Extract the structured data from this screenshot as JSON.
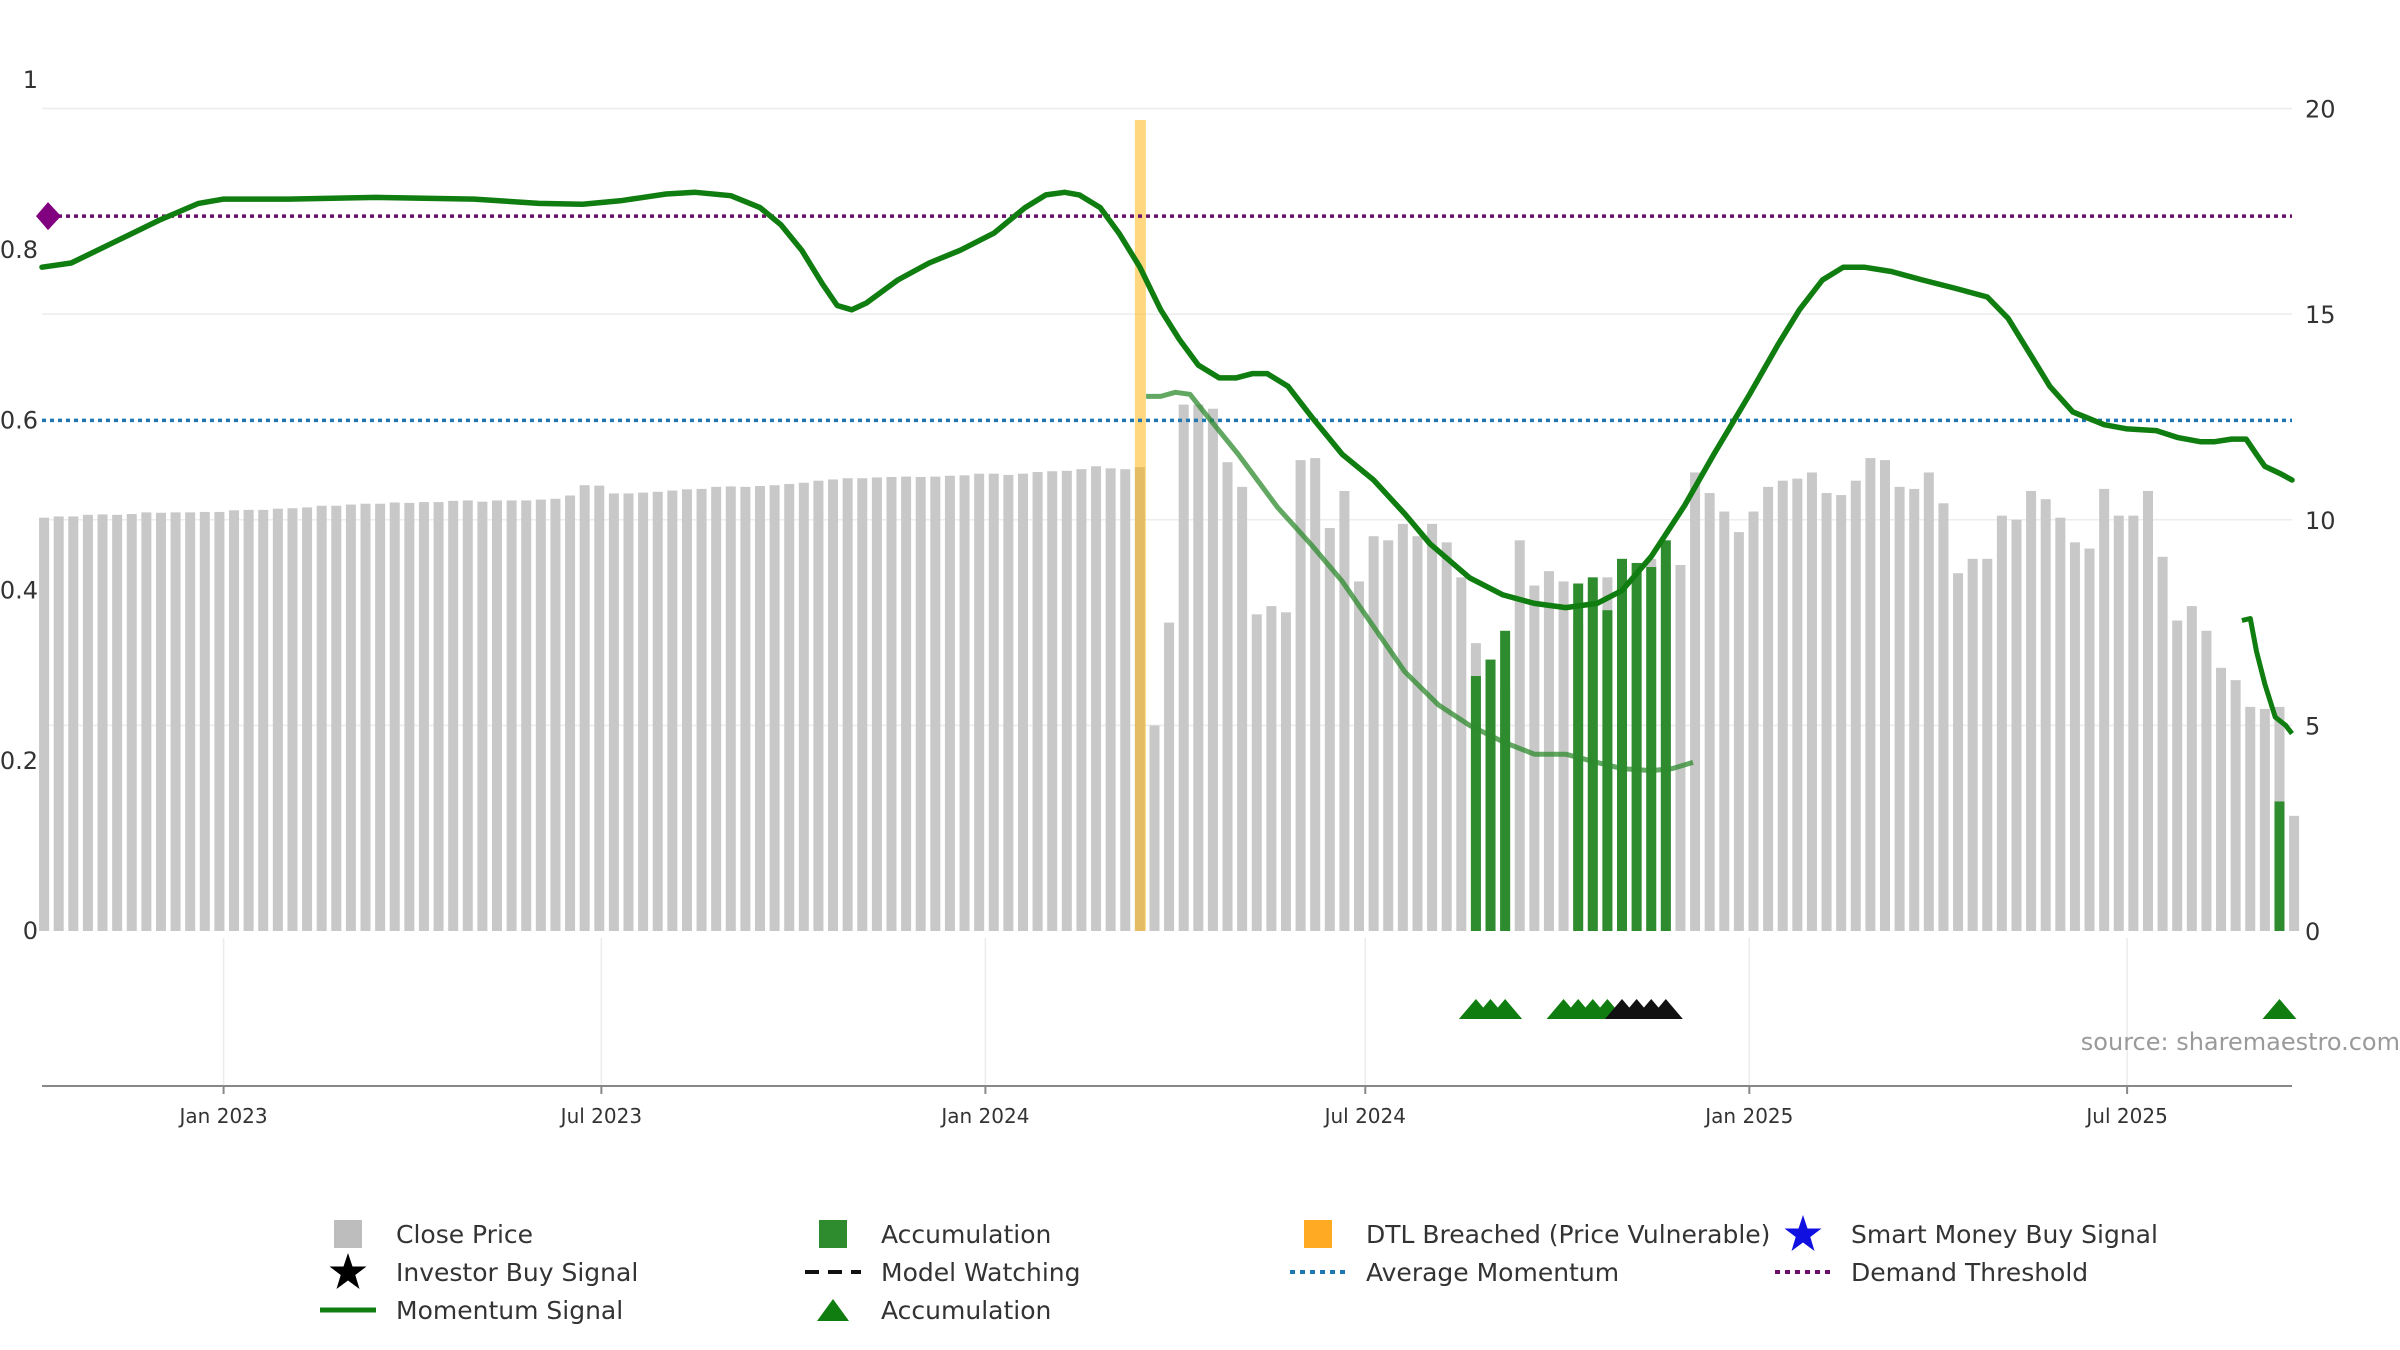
{
  "chart_data": {
    "type": "bar",
    "title": "",
    "source_note": "source: sharemaestro.com",
    "left_axis": {
      "range": [
        0,
        1
      ],
      "ticks": [
        0,
        0.2,
        0.4,
        0.6,
        0.8,
        1
      ],
      "tick_labels": [
        "0",
        "0.2",
        "0.4",
        "0.6",
        "0.8",
        "1"
      ]
    },
    "right_axis": {
      "range": [
        0,
        20
      ],
      "ticks": [
        0,
        5,
        10,
        15,
        20
      ],
      "tick_labels": [
        "0",
        "5",
        "10",
        "15",
        "20"
      ]
    },
    "x_axis": {
      "start": "2022-10-06",
      "end": "2025-09-18",
      "ticks": [
        {
          "date": "2023-01-01",
          "label": "Jan 2023"
        },
        {
          "date": "2023-07-01",
          "label": "Jul 2023"
        },
        {
          "date": "2024-01-01",
          "label": "Jan 2024"
        },
        {
          "date": "2024-07-01",
          "label": "Jul 2024"
        },
        {
          "date": "2025-01-01",
          "label": "Jan 2025"
        },
        {
          "date": "2025-07-01",
          "label": "Jul 2025"
        }
      ]
    },
    "close_price": {
      "start": "2022-10-07",
      "interval_days": 7,
      "values": [
        10.05,
        10.08,
        10.08,
        10.12,
        10.13,
        10.12,
        10.14,
        10.18,
        10.17,
        10.18,
        10.18,
        10.19,
        10.19,
        10.23,
        10.24,
        10.24,
        10.27,
        10.28,
        10.3,
        10.34,
        10.34,
        10.37,
        10.39,
        10.39,
        10.42,
        10.41,
        10.43,
        10.43,
        10.46,
        10.47,
        10.44,
        10.47,
        10.47,
        10.47,
        10.49,
        10.51,
        10.59,
        10.84,
        10.83,
        10.64,
        10.64,
        10.66,
        10.68,
        10.71,
        10.74,
        10.75,
        10.8,
        10.81,
        10.8,
        10.82,
        10.84,
        10.87,
        10.9,
        10.95,
        10.98,
        11.01,
        11.01,
        11.03,
        11.04,
        11.05,
        11.04,
        11.05,
        11.07,
        11.08,
        11.12,
        11.12,
        11.09,
        11.12,
        11.16,
        11.18,
        11.19,
        11.23,
        11.3,
        11.25,
        11.23,
        11.28,
        5,
        7.5,
        12.8,
        12.8,
        12.7,
        11.4,
        10.8,
        7.7,
        7.9,
        7.75,
        11.45,
        11.5,
        9.8,
        10.7,
        8.5,
        9.6,
        9.5,
        9.9,
        9.6,
        9.9,
        9.45,
        8.6,
        7,
        6.5,
        5.9,
        9.5,
        8.4,
        8.75,
        8.5,
        7.5,
        8.3,
        8.6,
        8.25,
        7.85,
        9.05,
        8.9,
        8.9,
        11.15,
        10.65,
        10.2,
        9.7,
        10.2,
        10.8,
        10.95,
        11.0,
        11.15,
        10.65,
        10.6,
        10.95,
        11.5,
        11.45,
        10.8,
        10.75,
        11.15,
        10.4,
        8.7,
        9.05,
        9.05,
        10.1,
        10.0,
        10.7,
        10.5,
        10.05,
        9.45,
        9.3,
        10.75,
        10.1,
        10.1,
        10.7,
        9.1,
        7.55,
        7.9,
        7.3,
        6.4,
        6.1,
        5.45,
        5.4,
        5.45,
        2.8
      ]
    },
    "accumulation_bars": {
      "color": "#2e8b2e",
      "values": [
        {
          "date": "2024-08-23",
          "value": 6.2
        },
        {
          "date": "2024-08-30",
          "value": 6.6
        },
        {
          "date": "2024-09-06",
          "value": 7.3
        },
        {
          "date": "2024-10-11",
          "value": 8.45
        },
        {
          "date": "2024-10-18",
          "value": 8.6
        },
        {
          "date": "2024-10-25",
          "value": 7.8
        },
        {
          "date": "2024-11-01",
          "value": 9.05
        },
        {
          "date": "2024-11-08",
          "value": 8.95
        },
        {
          "date": "2024-11-15",
          "value": 8.85
        },
        {
          "date": "2024-11-22",
          "value": 9.5
        },
        {
          "date": "2025-09-12",
          "value": 3.15
        }
      ]
    },
    "dtl_breached": {
      "date": "2024-03-15",
      "color": "#ffb000"
    },
    "momentum_signal": {
      "color": "#0f7d0f",
      "points": [
        [
          "2022-10-06",
          0.78
        ],
        [
          "2022-10-20",
          0.785
        ],
        [
          "2022-11-10",
          0.81
        ],
        [
          "2022-12-01",
          0.835
        ],
        [
          "2022-12-20",
          0.855
        ],
        [
          "2023-01-01",
          0.86
        ],
        [
          "2023-02-01",
          0.86
        ],
        [
          "2023-03-15",
          0.862
        ],
        [
          "2023-05-01",
          0.86
        ],
        [
          "2023-06-01",
          0.855
        ],
        [
          "2023-06-22",
          0.854
        ],
        [
          "2023-07-10",
          0.858
        ],
        [
          "2023-08-01",
          0.866
        ],
        [
          "2023-08-15",
          0.868
        ],
        [
          "2023-09-01",
          0.864
        ],
        [
          "2023-09-15",
          0.85
        ],
        [
          "2023-09-25",
          0.83
        ],
        [
          "2023-10-05",
          0.8
        ],
        [
          "2023-10-15",
          0.76
        ],
        [
          "2023-10-22",
          0.735
        ],
        [
          "2023-10-29",
          0.73
        ],
        [
          "2023-11-05",
          0.738
        ],
        [
          "2023-11-20",
          0.765
        ],
        [
          "2023-12-05",
          0.785
        ],
        [
          "2023-12-20",
          0.8
        ],
        [
          "2024-01-05",
          0.82
        ],
        [
          "2024-01-20",
          0.85
        ],
        [
          "2024-01-30",
          0.865
        ],
        [
          "2024-02-08",
          0.868
        ],
        [
          "2024-02-15",
          0.865
        ],
        [
          "2024-02-25",
          0.85
        ],
        [
          "2024-03-05",
          0.82
        ],
        [
          "2024-03-15",
          0.78
        ],
        [
          "2024-03-25",
          0.73
        ],
        [
          "2024-04-03",
          0.695
        ],
        [
          "2024-04-12",
          0.665
        ],
        [
          "2024-04-22",
          0.65
        ],
        [
          "2024-04-30",
          0.65
        ],
        [
          "2024-05-08",
          0.655
        ],
        [
          "2024-05-15",
          0.655
        ],
        [
          "2024-05-25",
          0.64
        ],
        [
          "2024-06-05",
          0.605
        ],
        [
          "2024-06-20",
          0.56
        ],
        [
          "2024-07-05",
          0.53
        ],
        [
          "2024-07-20",
          0.49
        ],
        [
          "2024-08-01",
          0.455
        ],
        [
          "2024-08-20",
          0.415
        ],
        [
          "2024-09-05",
          0.395
        ],
        [
          "2024-09-20",
          0.385
        ],
        [
          "2024-10-05",
          0.38
        ],
        [
          "2024-10-20",
          0.385
        ],
        [
          "2024-11-01",
          0.4
        ],
        [
          "2024-11-15",
          0.44
        ],
        [
          "2024-12-01",
          0.5
        ],
        [
          "2024-12-15",
          0.56
        ],
        [
          "2025-01-01",
          0.63
        ],
        [
          "2025-01-15",
          0.69
        ],
        [
          "2025-01-25",
          0.73
        ],
        [
          "2025-02-05",
          0.765
        ],
        [
          "2025-02-15",
          0.78
        ],
        [
          "2025-02-25",
          0.78
        ],
        [
          "2025-03-10",
          0.775
        ],
        [
          "2025-03-25",
          0.765
        ],
        [
          "2025-04-10",
          0.755
        ],
        [
          "2025-04-25",
          0.745
        ],
        [
          "2025-05-05",
          0.72
        ],
        [
          "2025-05-15",
          0.68
        ],
        [
          "2025-05-25",
          0.64
        ],
        [
          "2025-06-05",
          0.61
        ],
        [
          "2025-06-20",
          0.595
        ],
        [
          "2025-07-01",
          0.59
        ],
        [
          "2025-07-15",
          0.588
        ],
        [
          "2025-07-25",
          0.58
        ],
        [
          "2025-08-05",
          0.575
        ],
        [
          "2025-08-12",
          0.575
        ],
        [
          "2025-08-20",
          0.578
        ],
        [
          "2025-08-27",
          0.578
        ],
        [
          "2025-09-01",
          0.56
        ],
        [
          "2025-09-05",
          0.546
        ],
        [
          "2025-09-12",
          0.538
        ],
        [
          "2025-09-18",
          0.53
        ]
      ]
    },
    "price_smooth_line": {
      "color": "#2e8b2e",
      "points": [
        [
          "2024-03-18",
          13.0
        ],
        [
          "2024-03-25",
          13.0
        ],
        [
          "2024-04-01",
          13.1
        ],
        [
          "2024-04-08",
          13.05
        ],
        [
          "2024-04-15",
          12.6
        ],
        [
          "2024-05-01",
          11.6
        ],
        [
          "2024-05-20",
          10.3
        ],
        [
          "2024-06-05",
          9.4
        ],
        [
          "2024-06-20",
          8.5
        ],
        [
          "2024-07-05",
          7.4
        ],
        [
          "2024-07-20",
          6.3
        ],
        [
          "2024-08-05",
          5.5
        ],
        [
          "2024-08-20",
          5.0
        ],
        [
          "2024-09-05",
          4.6
        ],
        [
          "2024-09-20",
          4.3
        ],
        [
          "2024-10-05",
          4.3
        ],
        [
          "2024-10-20",
          4.1
        ],
        [
          "2024-11-01",
          3.95
        ],
        [
          "2024-11-15",
          3.9
        ],
        [
          "2024-11-25",
          3.95
        ],
        [
          "2024-12-05",
          4.1
        ]
      ]
    },
    "price_tail_line": {
      "color": "#0f7d0f",
      "points": [
        [
          "2025-08-25",
          7.55
        ],
        [
          "2025-08-29",
          7.6
        ],
        [
          "2025-09-01",
          6.8
        ],
        [
          "2025-09-05",
          6.0
        ],
        [
          "2025-09-10",
          5.2
        ],
        [
          "2025-09-15",
          5.0
        ],
        [
          "2025-09-18",
          4.8
        ]
      ]
    },
    "average_momentum": {
      "value": 0.6,
      "color": "#1f77b4"
    },
    "demand_threshold": {
      "value": 0.84,
      "color": "#6a0f6a"
    },
    "demand_marker": {
      "value": 0.84,
      "color": "#800080"
    },
    "accumulation_triangles": [
      {
        "date": "2024-08-23",
        "color": "#0f7d0f"
      },
      {
        "date": "2024-08-30",
        "color": "#0f7d0f"
      },
      {
        "date": "2024-09-06",
        "color": "#0f7d0f"
      },
      {
        "date": "2024-10-04",
        "color": "#0f7d0f"
      },
      {
        "date": "2024-10-11",
        "color": "#0f7d0f"
      },
      {
        "date": "2024-10-18",
        "color": "#0f7d0f"
      },
      {
        "date": "2024-10-25",
        "color": "#0f7d0f"
      },
      {
        "date": "2024-11-01",
        "color": "#111111"
      },
      {
        "date": "2024-11-08",
        "color": "#111111"
      },
      {
        "date": "2024-11-15",
        "color": "#111111"
      },
      {
        "date": "2024-11-22",
        "color": "#111111"
      },
      {
        "date": "2025-09-12",
        "color": "#0f7d0f"
      }
    ],
    "legend": [
      {
        "key": "close",
        "label": "Close Price",
        "icon": "grey-square",
        "color": "#bdbdbd"
      },
      {
        "key": "investor",
        "label": "Investor Buy Signal",
        "icon": "black-star",
        "color": "#000000"
      },
      {
        "key": "momentum",
        "label": "Momentum Signal",
        "icon": "green-line",
        "color": "#0f7d0f"
      },
      {
        "key": "accum_bar",
        "label": "Accumulation",
        "icon": "green-square",
        "color": "#2e8b2e"
      },
      {
        "key": "watching",
        "label": "Model Watching",
        "icon": "black-dashed-line",
        "color": "#000000"
      },
      {
        "key": "accum_tri",
        "label": "Accumulation",
        "icon": "green-triangle",
        "color": "#0f7d0f"
      },
      {
        "key": "dtl",
        "label": "DTL Breached (Price Vulnerable)",
        "icon": "orange-square",
        "color": "#ffaa22"
      },
      {
        "key": "avg_mom",
        "label": "Average Momentum",
        "icon": "blue-dotted-line",
        "color": "#1f77b4"
      },
      {
        "key": "smart",
        "label": "Smart Money Buy Signal",
        "icon": "blue-star",
        "color": "#1010e0"
      },
      {
        "key": "demand",
        "label": "Demand Threshold",
        "icon": "purple-dotted-line",
        "color": "#6a0f6a"
      }
    ]
  }
}
